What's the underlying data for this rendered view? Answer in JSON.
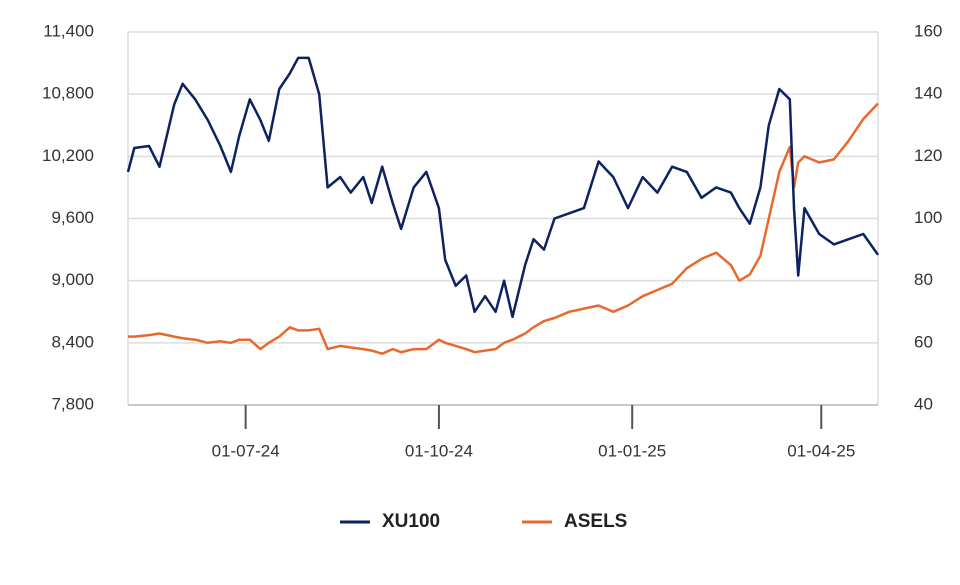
{
  "chart_data": {
    "type": "line",
    "x": [
      "2024-05-06",
      "2024-05-09",
      "2024-05-16",
      "2024-05-21",
      "2024-05-28",
      "2024-06-01",
      "2024-06-07",
      "2024-06-13",
      "2024-06-19",
      "2024-06-24",
      "2024-06-28",
      "2024-07-03",
      "2024-07-08",
      "2024-07-12",
      "2024-07-17",
      "2024-07-22",
      "2024-07-26",
      "2024-07-31",
      "2024-08-05",
      "2024-08-09",
      "2024-08-15",
      "2024-08-20",
      "2024-08-26",
      "2024-08-30",
      "2024-09-04",
      "2024-09-09",
      "2024-09-13",
      "2024-09-19",
      "2024-09-25",
      "2024-10-01",
      "2024-10-04",
      "2024-10-09",
      "2024-10-14",
      "2024-10-18",
      "2024-10-23",
      "2024-10-28",
      "2024-11-01",
      "2024-11-05",
      "2024-11-11",
      "2024-11-15",
      "2024-11-20",
      "2024-11-25",
      "2024-12-02",
      "2024-12-09",
      "2024-12-16",
      "2024-12-23",
      "2024-12-30",
      "2025-01-06",
      "2025-01-13",
      "2025-01-20",
      "2025-01-27",
      "2025-02-03",
      "2025-02-10",
      "2025-02-17",
      "2025-02-21",
      "2025-02-26",
      "2025-03-03",
      "2025-03-07",
      "2025-03-12",
      "2025-03-17",
      "2025-03-19",
      "2025-03-21",
      "2025-03-24",
      "2025-03-31",
      "2025-04-07",
      "2025-04-14",
      "2025-04-21",
      "2025-04-28"
    ],
    "series": [
      {
        "name": "XU100",
        "color": "#0d2260",
        "axis": "y",
        "values": [
          10050,
          10280,
          10300,
          10100,
          10700,
          10900,
          10750,
          10550,
          10300,
          10050,
          10400,
          10750,
          10550,
          10350,
          10850,
          11000,
          11150,
          11150,
          10800,
          9900,
          10000,
          9850,
          10000,
          9750,
          10100,
          9750,
          9500,
          9900,
          10050,
          9700,
          9200,
          8950,
          9050,
          8700,
          8850,
          8700,
          9000,
          8650,
          9150,
          9400,
          9300,
          9600,
          9650,
          9700,
          10150,
          10000,
          9700,
          10000,
          9850,
          10100,
          10050,
          9800,
          9900,
          9850,
          9700,
          9550,
          9900,
          10500,
          10850,
          10750,
          9700,
          9050,
          9700,
          9450,
          9350,
          9400,
          9450,
          9250
        ]
      },
      {
        "name": "ASELS",
        "color": "#e8692e",
        "axis": "y2",
        "values": [
          62,
          62,
          62.5,
          63,
          62,
          61.5,
          61,
          60,
          60.5,
          60,
          61,
          61,
          58,
          60,
          62,
          65,
          64,
          64,
          64.5,
          58,
          59,
          58.5,
          58,
          57.5,
          56.5,
          58,
          57,
          58,
          58,
          61,
          60,
          59,
          58,
          57,
          57.5,
          58,
          60,
          61,
          63,
          65,
          67,
          68,
          70,
          71,
          72,
          70,
          72,
          75,
          77,
          79,
          84,
          87,
          89,
          85,
          80,
          82,
          88,
          100,
          115,
          123,
          110,
          118,
          120,
          118,
          119,
          125,
          132,
          137
        ]
      }
    ],
    "xlim": [
      "2024-05-06",
      "2025-04-28"
    ],
    "xticks": [
      {
        "value": "2024-07-01",
        "label": "01-07-24"
      },
      {
        "value": "2024-10-01",
        "label": "01-10-24"
      },
      {
        "value": "2025-01-01",
        "label": "01-01-25"
      },
      {
        "value": "2025-04-01",
        "label": "01-04-25"
      }
    ],
    "ylim": [
      7800,
      11400
    ],
    "yticks": [
      {
        "value": 7800,
        "label": "7,800"
      },
      {
        "value": 8400,
        "label": "8,400"
      },
      {
        "value": 9000,
        "label": "9,000"
      },
      {
        "value": 9600,
        "label": "9,600"
      },
      {
        "value": 10200,
        "label": "10,200"
      },
      {
        "value": 10800,
        "label": "10,800"
      },
      {
        "value": 11400,
        "label": "11,400"
      }
    ],
    "y2lim": [
      40,
      160
    ],
    "y2ticks": [
      40,
      60,
      80,
      100,
      120,
      140,
      160
    ],
    "grid": true,
    "legend": "bottom"
  }
}
